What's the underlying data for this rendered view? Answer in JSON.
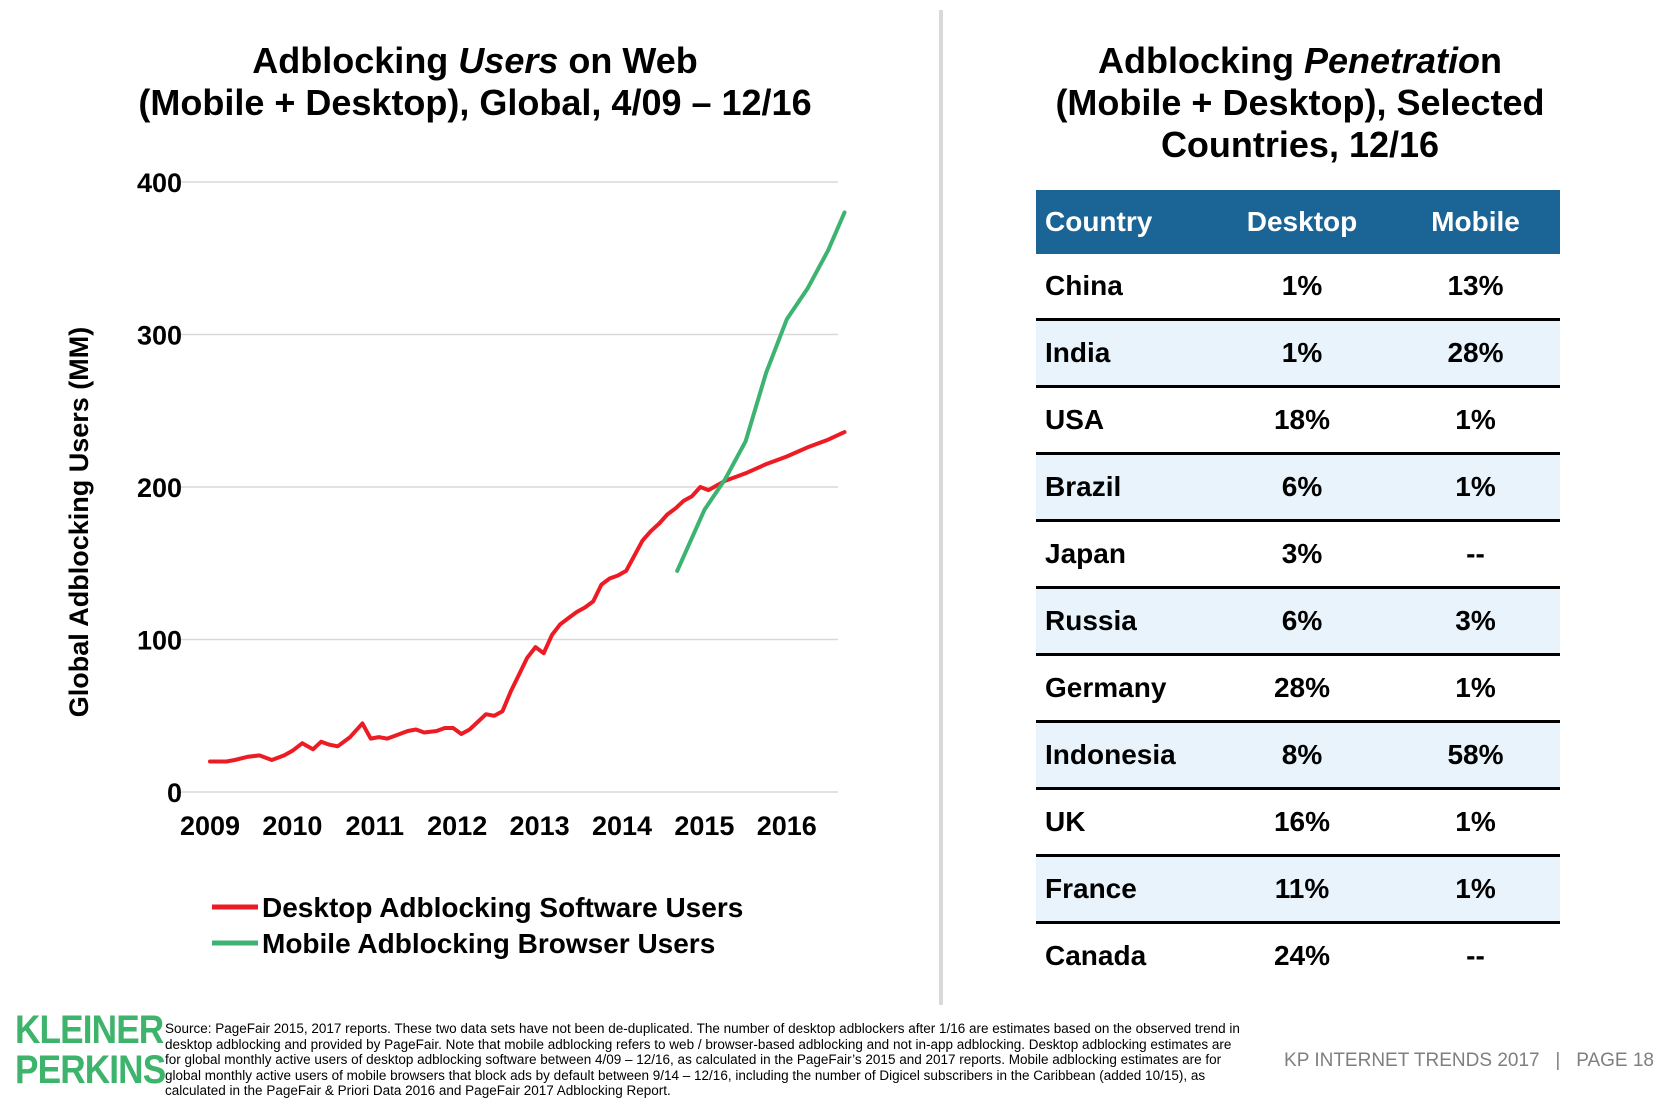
{
  "left_title": {
    "line1_a": "Adblocking ",
    "line1_b": "Users",
    "line1_c": " on Web",
    "line2": "(Mobile + Desktop), Global, 4/09 – 12/16"
  },
  "right_title": {
    "line1_a": "Adblocking ",
    "line1_b": "Penetratio",
    "line1_c": "n",
    "line2": "(Mobile + Desktop), Selected",
    "line3": "Countries, 12/16"
  },
  "chart_data": {
    "type": "line",
    "title": "Adblocking Users on Web (Mobile + Desktop), Global, 4/09 – 12/16",
    "xlabel": "",
    "ylabel": "Global Adblocking Users (MM)",
    "xlim": [
      2009,
      2016.9
    ],
    "ylim": [
      0,
      400
    ],
    "x_ticks": [
      "2009",
      "2010",
      "2011",
      "2012",
      "2013",
      "2014",
      "2015",
      "2016"
    ],
    "y_ticks": [
      "0",
      "100",
      "200",
      "300",
      "400"
    ],
    "grid": true,
    "legend_position": "bottom",
    "series": [
      {
        "name": "Desktop Adblocking Software Users",
        "color": "#ed1c24",
        "x": [
          2009.0,
          2009.2,
          2009.3,
          2009.45,
          2009.6,
          2009.75,
          2009.9,
          2010.0,
          2010.12,
          2010.25,
          2010.35,
          2010.45,
          2010.55,
          2010.7,
          2010.85,
          2010.95,
          2011.05,
          2011.15,
          2011.25,
          2011.4,
          2011.5,
          2011.6,
          2011.75,
          2011.85,
          2011.95,
          2012.05,
          2012.15,
          2012.25,
          2012.35,
          2012.45,
          2012.55,
          2012.65,
          2012.75,
          2012.85,
          2012.95,
          2013.05,
          2013.15,
          2013.25,
          2013.35,
          2013.45,
          2013.55,
          2013.65,
          2013.75,
          2013.85,
          2013.95,
          2014.05,
          2014.15,
          2014.25,
          2014.35,
          2014.45,
          2014.55,
          2014.65,
          2014.75,
          2014.85,
          2014.95,
          2015.05,
          2015.25,
          2015.5,
          2015.75,
          2016.0,
          2016.25,
          2016.5,
          2016.7
        ],
        "values": [
          20,
          20,
          21,
          23,
          24,
          21,
          24,
          27,
          32,
          28,
          33,
          31,
          30,
          36,
          45,
          35,
          36,
          35,
          37,
          40,
          41,
          39,
          40,
          42,
          42,
          38,
          41,
          46,
          51,
          50,
          53,
          66,
          77,
          88,
          95,
          91,
          103,
          110,
          114,
          118,
          121,
          125,
          136,
          140,
          142,
          145,
          155,
          165,
          171,
          176,
          182,
          186,
          191,
          194,
          200,
          198,
          204,
          209,
          215,
          220,
          226,
          231,
          236
        ]
      },
      {
        "name": "Mobile Adblocking Browser Users",
        "color": "#3cb371",
        "x": [
          2014.67,
          2015.0,
          2015.25,
          2015.5,
          2015.75,
          2016.0,
          2016.25,
          2016.5,
          2016.7
        ],
        "values": [
          145,
          185,
          205,
          230,
          275,
          310,
          330,
          355,
          380
        ]
      }
    ]
  },
  "table": {
    "headers": [
      "Country",
      "Desktop",
      "Mobile"
    ],
    "rows": [
      [
        "China",
        "1%",
        "13%"
      ],
      [
        "India",
        "1%",
        "28%"
      ],
      [
        "USA",
        "18%",
        "1%"
      ],
      [
        "Brazil",
        "6%",
        "1%"
      ],
      [
        "Japan",
        "3%",
        "--"
      ],
      [
        "Russia",
        "6%",
        "3%"
      ],
      [
        "Germany",
        "28%",
        "1%"
      ],
      [
        "Indonesia",
        "8%",
        "58%"
      ],
      [
        "UK",
        "16%",
        "1%"
      ],
      [
        "France",
        "11%",
        "1%"
      ],
      [
        "Canada",
        "24%",
        "--"
      ]
    ]
  },
  "footer": {
    "logo_line1": "KLEINER",
    "logo_line2": "PERKINS",
    "source": "Source: PageFair 2015, 2017 reports. These two data sets have not been de-duplicated. The number of desktop adblockers after 1/16 are estimates based on the observed trend in desktop adblocking and provided by PageFair. Note that mobile adblocking refers to web / browser-based adblocking and not in-app adblocking. Desktop adblocking estimates are for global monthly active users of desktop adblocking software between 4/09 – 12/16, as calculated in the PageFair’s 2015 and 2017 reports. Mobile adblocking estimates are for global monthly active users of mobile browsers that block ads by default between 9/14 – 12/16, including the number of Digicel subscribers in the Caribbean (added 10/15), as calculated in the PageFair & Priori Data 2016 and PageFair 2017 Adblocking Report.",
    "page_label": "KP INTERNET TRENDS 2017   |   PAGE 18"
  }
}
